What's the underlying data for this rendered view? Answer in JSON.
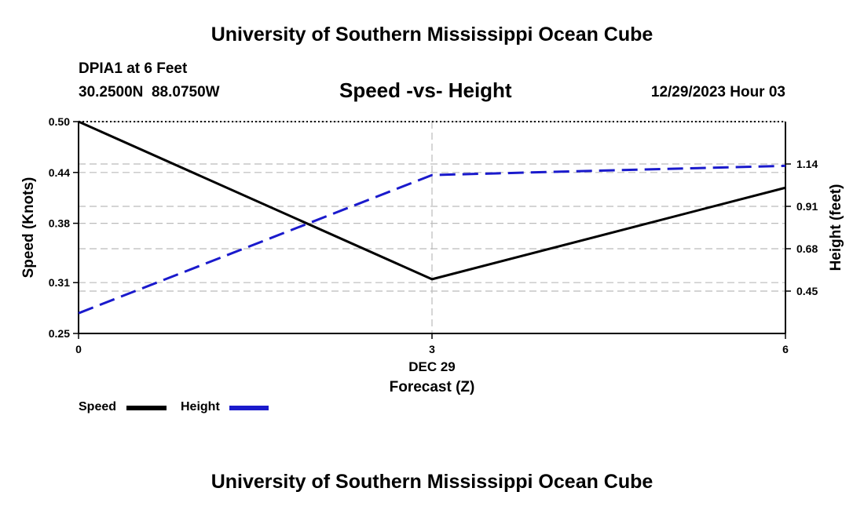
{
  "header": {
    "title": "University of Southern Mississippi Ocean Cube",
    "station": "DPIA1 at 6 Feet",
    "coords": "30.2500N  88.0750W",
    "date": "12/29/2023 Hour 03"
  },
  "footer": {
    "title": "University of Southern Mississippi Ocean Cube"
  },
  "legend": {
    "speed_label": "Speed",
    "height_label": "Height"
  },
  "colors": {
    "speed": "#000000",
    "height": "#1a1acc",
    "grid": "#bbbbbb"
  },
  "chart_data": {
    "type": "line",
    "title": "Speed -vs- Height",
    "xlabel": "Forecast (Z)",
    "xsub": "DEC 29",
    "ylabel": "Speed (Knots)",
    "y2label": "Height (feet)",
    "x": [
      0,
      3,
      6
    ],
    "xlim": [
      0,
      6
    ],
    "xticks": [
      "0",
      "3",
      "6"
    ],
    "ylim": [
      0.25,
      0.5
    ],
    "yticks": [
      "0.50",
      "0.44",
      "0.38",
      "0.31",
      "0.25"
    ],
    "y2lim": [
      0.22,
      1.37
    ],
    "y2ticks": [
      "1.14",
      "0.91",
      "0.68",
      "0.45"
    ],
    "series": [
      {
        "name": "Speed",
        "axis": "left",
        "values": [
          0.5,
          0.314,
          0.422
        ]
      },
      {
        "name": "Height",
        "axis": "right",
        "values": [
          0.33,
          1.08,
          1.13
        ]
      }
    ]
  }
}
